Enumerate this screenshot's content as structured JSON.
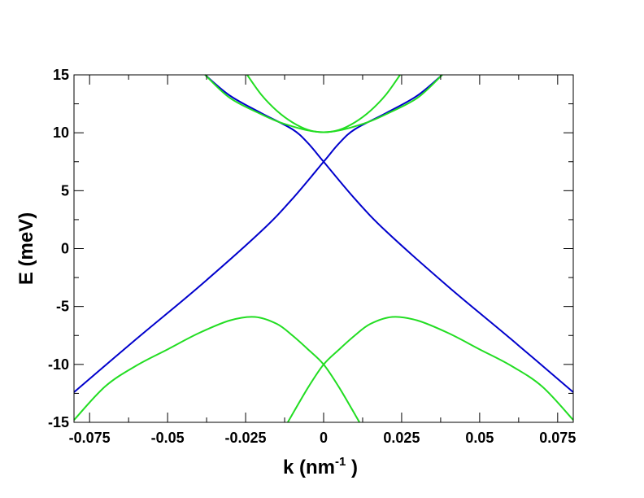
{
  "chart_data": {
    "type": "line",
    "xlabel": "k (nm",
    "xlabel_sup": "-1",
    "xlabel_close": " )",
    "ylabel": "E (meV)",
    "xlim": [
      -0.08,
      0.08
    ],
    "ylim": [
      -15,
      15
    ],
    "x_ticks": [
      -0.075,
      -0.05,
      -0.025,
      0,
      0.025,
      0.05,
      0.075
    ],
    "x_tick_labels": [
      "-0.075",
      "-0.05",
      "-0.025",
      "0",
      "0.025",
      "0.05",
      "0.075"
    ],
    "y_ticks": [
      -15,
      -10,
      -5,
      0,
      5,
      10,
      15
    ],
    "y_tick_labels": [
      "-15",
      "-10",
      "-5",
      "0",
      "5",
      "10",
      "15"
    ],
    "grid": false,
    "colors": {
      "blue": "#0000cc",
      "green": "#22dd22"
    },
    "series": [
      {
        "color": "blue",
        "x": [
          -0.08,
          -0.06,
          -0.04,
          -0.02,
          -0.01,
          0,
          0.005,
          0.01,
          0.02,
          0.03,
          0.038
        ],
        "y": [
          -12.4,
          -7.8,
          -3.3,
          1.5,
          4.3,
          7.5,
          9.1,
          10.3,
          11.7,
          13.2,
          15.0
        ]
      },
      {
        "color": "blue",
        "x": [
          -0.038,
          -0.03,
          -0.02,
          -0.01,
          -0.005,
          0,
          0.01,
          0.02,
          0.04,
          0.06,
          0.08
        ],
        "y": [
          15.0,
          13.2,
          11.7,
          10.3,
          9.1,
          7.5,
          4.3,
          1.5,
          -3.3,
          -7.8,
          -12.4
        ]
      },
      {
        "color": "green",
        "x": [
          -0.0245,
          -0.02,
          -0.015,
          -0.01,
          -0.005,
          0,
          0.005,
          0.01,
          0.015,
          0.02,
          0.0245
        ],
        "y": [
          15.0,
          13.3,
          11.9,
          10.9,
          10.25,
          10.05,
          10.25,
          10.9,
          11.9,
          13.3,
          15.0
        ]
      },
      {
        "color": "green",
        "x": [
          -0.038,
          -0.03,
          -0.02,
          -0.015,
          -0.01,
          -0.005,
          0,
          0.005,
          0.01,
          0.015,
          0.02,
          0.03,
          0.038
        ],
        "y": [
          15.0,
          13.0,
          11.6,
          11.0,
          10.55,
          10.2,
          10.05,
          10.2,
          10.55,
          11.0,
          11.6,
          13.0,
          15.0
        ]
      },
      {
        "color": "green",
        "x": [
          -0.08,
          -0.07,
          -0.06,
          -0.05,
          -0.04,
          -0.03,
          -0.022,
          -0.015,
          -0.01,
          -0.005,
          0,
          0.005,
          0.0115
        ],
        "y": [
          -14.8,
          -11.9,
          -10.1,
          -8.7,
          -7.3,
          -6.2,
          -5.9,
          -6.5,
          -7.5,
          -8.7,
          -10.0,
          -12.0,
          -15.0
        ]
      },
      {
        "color": "green",
        "x": [
          -0.0115,
          -0.005,
          0,
          0.005,
          0.01,
          0.015,
          0.022,
          0.03,
          0.04,
          0.05,
          0.06,
          0.07,
          0.08
        ],
        "y": [
          -15.0,
          -12.0,
          -10.0,
          -8.7,
          -7.5,
          -6.5,
          -5.9,
          -6.2,
          -7.3,
          -8.7,
          -10.1,
          -11.9,
          -14.8
        ]
      }
    ]
  }
}
